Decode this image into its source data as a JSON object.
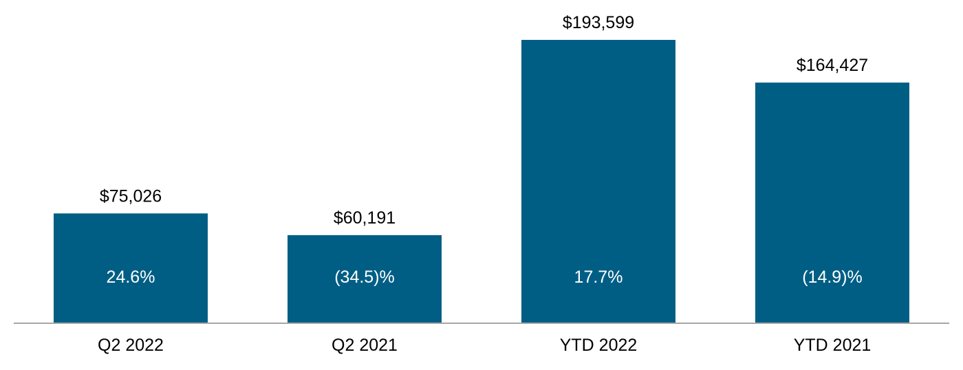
{
  "chart_data": {
    "type": "bar",
    "title": "",
    "xlabel": "",
    "ylabel": "",
    "categories": [
      "Q2 2022",
      "Q2 2021",
      "YTD 2022",
      "YTD 2021"
    ],
    "values": [
      75026,
      60191,
      193599,
      164427
    ],
    "value_labels": [
      "$75,026",
      "$60,191",
      "$193,599",
      "$164,427"
    ],
    "change_labels": [
      "24.6%",
      "(34.5)%",
      "17.7%",
      "(14.9)%"
    ],
    "ylim": [
      0,
      193599
    ],
    "grid": false,
    "legend": "none",
    "colors": {
      "bar": "#005E85",
      "axis": "#A6A6A6"
    }
  }
}
